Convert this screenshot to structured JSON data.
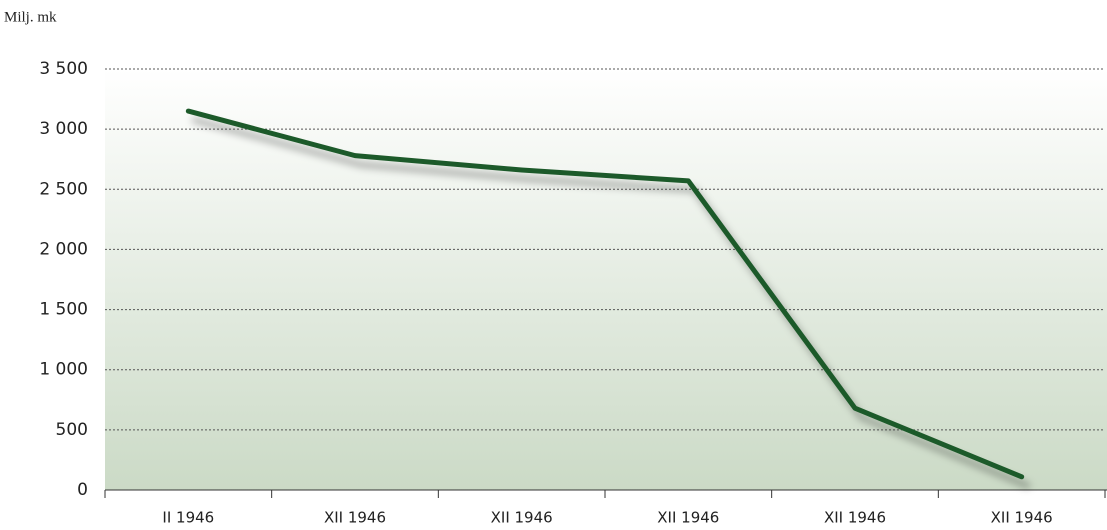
{
  "chart_data": {
    "type": "line",
    "y_label": "Milj. mk",
    "categories": [
      "II 1946",
      "XII 1946",
      "XII 1946",
      "XII 1946",
      "XII 1946",
      "XII 1946"
    ],
    "series": [
      {
        "name": "Milj. mk",
        "color": "#1f5a2a",
        "values": [
          3150,
          2780,
          2660,
          2570,
          680,
          110
        ]
      }
    ],
    "ylim": [
      0,
      3500
    ],
    "yticks": [
      0,
      500,
      {
        "value": 1000,
        "label": "1 000"
      },
      {
        "value": 1500,
        "label": "1 500"
      },
      {
        "value": 2000,
        "label": "2 000"
      },
      {
        "value": 2500,
        "label": "2 500"
      },
      {
        "value": 3000,
        "label": "3 000"
      },
      {
        "value": 3500,
        "label": "3 500"
      }
    ],
    "grid": true
  }
}
